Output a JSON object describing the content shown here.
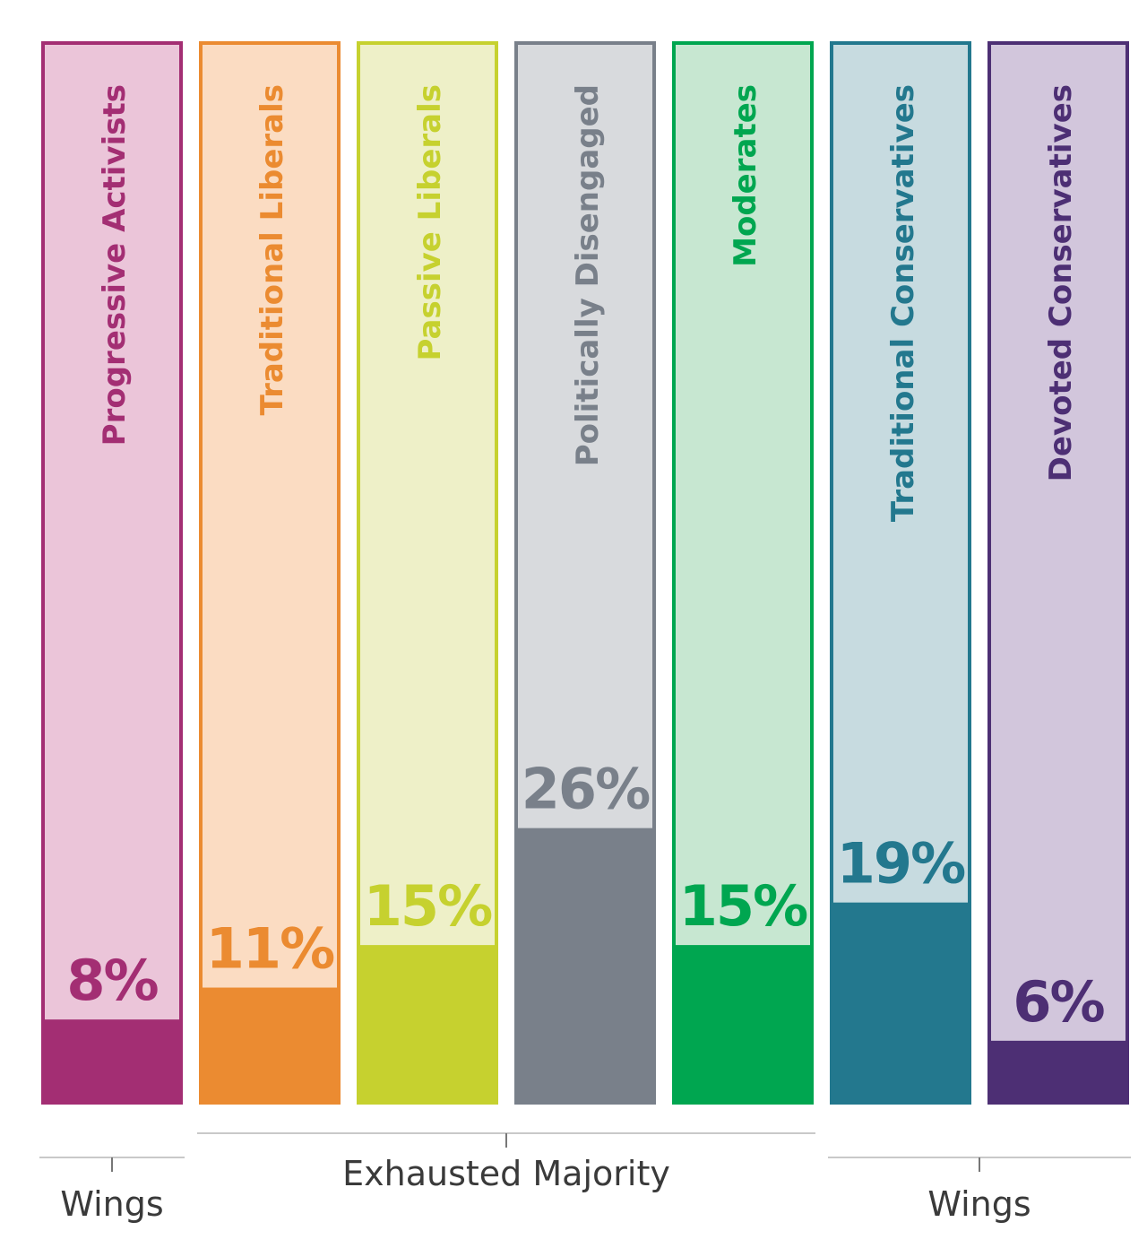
{
  "chart_data": {
    "type": "bar",
    "categories": [
      "Progressive Activists",
      "Traditional Liberals",
      "Passive Liberals",
      "Politically Disengaged",
      "Moderates",
      "Traditional Conservatives",
      "Devoted Conservatives"
    ],
    "values": [
      8,
      11,
      15,
      26,
      15,
      19,
      6
    ],
    "value_labels": [
      "8%",
      "11%",
      "15%",
      "26%",
      "15%",
      "19%",
      "6%"
    ],
    "unit": "%",
    "ylim": [
      0,
      100
    ],
    "grid": false,
    "colors": {
      "dark": [
        "#a32e73",
        "#eb8b31",
        "#c6d12f",
        "#79808a",
        "#00a650",
        "#23788e",
        "#4d2f74"
      ],
      "light": [
        "#ebc5d9",
        "#fbdcc2",
        "#eef0c8",
        "#d8dadd",
        "#c7e7d1",
        "#c7dbe0",
        "#d2c6dc"
      ],
      "value_text": [
        "#a32e73",
        "#eb8b31",
        "#c6d12f",
        "#79808a",
        "#00a650",
        "#23788e",
        "#4d2f74"
      ]
    },
    "groups": [
      {
        "label": "Wings",
        "members": [
          0
        ]
      },
      {
        "label": "Exhausted Majority",
        "members": [
          1,
          2,
          3,
          4
        ]
      },
      {
        "label": "Wings",
        "members": [
          5,
          6
        ]
      }
    ]
  }
}
